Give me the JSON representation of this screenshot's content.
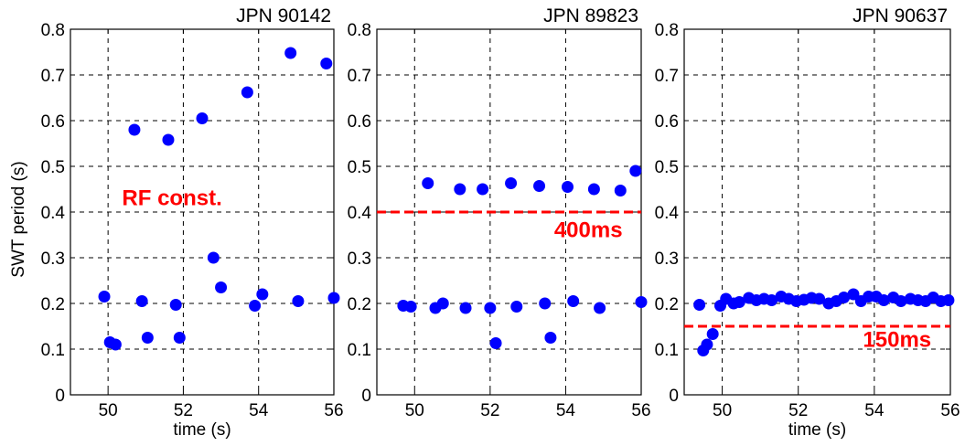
{
  "figure": {
    "ylabel": "SWT period (s)",
    "xlabel": "time (s)"
  },
  "chart_data": [
    {
      "type": "scatter",
      "title": "JPN 90142",
      "xlabel": "time (s)",
      "ylabel": "SWT period (s)",
      "xlim": [
        49,
        56
      ],
      "ylim": [
        0,
        0.8
      ],
      "xticks": [
        50,
        52,
        54,
        56
      ],
      "yticks": [
        0,
        0.1,
        0.2,
        0.3,
        0.4,
        0.5,
        0.6,
        0.7,
        0.8
      ],
      "grid": true,
      "marker_color": "#0000ff",
      "annotations": [
        {
          "text": "RF const.",
          "color": "#ff0000",
          "x": 51.7,
          "y": 0.415
        }
      ],
      "hlines": [],
      "points": [
        [
          49.9,
          0.215
        ],
        [
          50.05,
          0.115
        ],
        [
          50.2,
          0.11
        ],
        [
          50.7,
          0.58
        ],
        [
          50.9,
          0.205
        ],
        [
          51.05,
          0.125
        ],
        [
          51.6,
          0.558
        ],
        [
          51.8,
          0.197
        ],
        [
          51.9,
          0.125
        ],
        [
          52.5,
          0.605
        ],
        [
          52.8,
          0.3
        ],
        [
          53.0,
          0.235
        ],
        [
          53.7,
          0.662
        ],
        [
          53.9,
          0.195
        ],
        [
          54.1,
          0.22
        ],
        [
          54.85,
          0.748
        ],
        [
          55.05,
          0.205
        ],
        [
          55.8,
          0.725
        ],
        [
          56.0,
          0.212
        ]
      ]
    },
    {
      "type": "scatter",
      "title": "JPN 89823",
      "xlabel": "",
      "ylabel": "",
      "xlim": [
        49,
        56
      ],
      "ylim": [
        0,
        0.8
      ],
      "xticks": [
        50,
        52,
        54,
        56
      ],
      "yticks": [
        0,
        0.1,
        0.2,
        0.3,
        0.4,
        0.5,
        0.6,
        0.7,
        0.8
      ],
      "grid": true,
      "marker_color": "#0000ff",
      "annotations": [
        {
          "text": "400ms",
          "color": "#ff0000",
          "x": 54.6,
          "y": 0.345
        }
      ],
      "hlines": [
        {
          "y": 0.4,
          "color": "#ff0000",
          "style": "dashed"
        }
      ],
      "points": [
        [
          49.7,
          0.195
        ],
        [
          49.9,
          0.193
        ],
        [
          50.35,
          0.463
        ],
        [
          50.55,
          0.19
        ],
        [
          50.75,
          0.2
        ],
        [
          51.2,
          0.45
        ],
        [
          51.35,
          0.19
        ],
        [
          51.8,
          0.45
        ],
        [
          52.0,
          0.19
        ],
        [
          52.15,
          0.113
        ],
        [
          52.55,
          0.463
        ],
        [
          52.7,
          0.193
        ],
        [
          53.3,
          0.457
        ],
        [
          53.45,
          0.2
        ],
        [
          53.6,
          0.125
        ],
        [
          54.05,
          0.455
        ],
        [
          54.2,
          0.205
        ],
        [
          54.75,
          0.45
        ],
        [
          54.9,
          0.19
        ],
        [
          55.45,
          0.447
        ],
        [
          55.85,
          0.49
        ],
        [
          56.0,
          0.203
        ]
      ]
    },
    {
      "type": "scatter",
      "title": "JPN 90637",
      "xlabel": "time (s)",
      "ylabel": "",
      "xlim": [
        49,
        56
      ],
      "ylim": [
        0,
        0.8
      ],
      "xticks": [
        50,
        52,
        54,
        56
      ],
      "yticks": [
        0,
        0.1,
        0.2,
        0.3,
        0.4,
        0.5,
        0.6,
        0.7,
        0.8
      ],
      "grid": true,
      "marker_color": "#0000ff",
      "annotations": [
        {
          "text": "150ms",
          "color": "#ff0000",
          "x": 54.6,
          "y": 0.105
        }
      ],
      "hlines": [
        {
          "y": 0.15,
          "color": "#ff0000",
          "style": "dashed"
        }
      ],
      "points": [
        [
          49.4,
          0.197
        ],
        [
          49.5,
          0.097
        ],
        [
          49.6,
          0.11
        ],
        [
          49.75,
          0.133
        ],
        [
          49.95,
          0.195
        ],
        [
          50.1,
          0.21
        ],
        [
          50.3,
          0.2
        ],
        [
          50.45,
          0.203
        ],
        [
          50.7,
          0.212
        ],
        [
          50.9,
          0.207
        ],
        [
          51.1,
          0.21
        ],
        [
          51.3,
          0.207
        ],
        [
          51.55,
          0.215
        ],
        [
          51.75,
          0.21
        ],
        [
          51.95,
          0.205
        ],
        [
          52.15,
          0.208
        ],
        [
          52.35,
          0.212
        ],
        [
          52.55,
          0.21
        ],
        [
          52.8,
          0.2
        ],
        [
          53.0,
          0.205
        ],
        [
          53.2,
          0.213
        ],
        [
          53.45,
          0.22
        ],
        [
          53.65,
          0.205
        ],
        [
          53.85,
          0.215
        ],
        [
          54.05,
          0.215
        ],
        [
          54.25,
          0.207
        ],
        [
          54.5,
          0.213
        ],
        [
          54.7,
          0.205
        ],
        [
          54.95,
          0.21
        ],
        [
          55.15,
          0.207
        ],
        [
          55.35,
          0.205
        ],
        [
          55.55,
          0.213
        ],
        [
          55.75,
          0.205
        ],
        [
          55.95,
          0.207
        ]
      ]
    }
  ]
}
